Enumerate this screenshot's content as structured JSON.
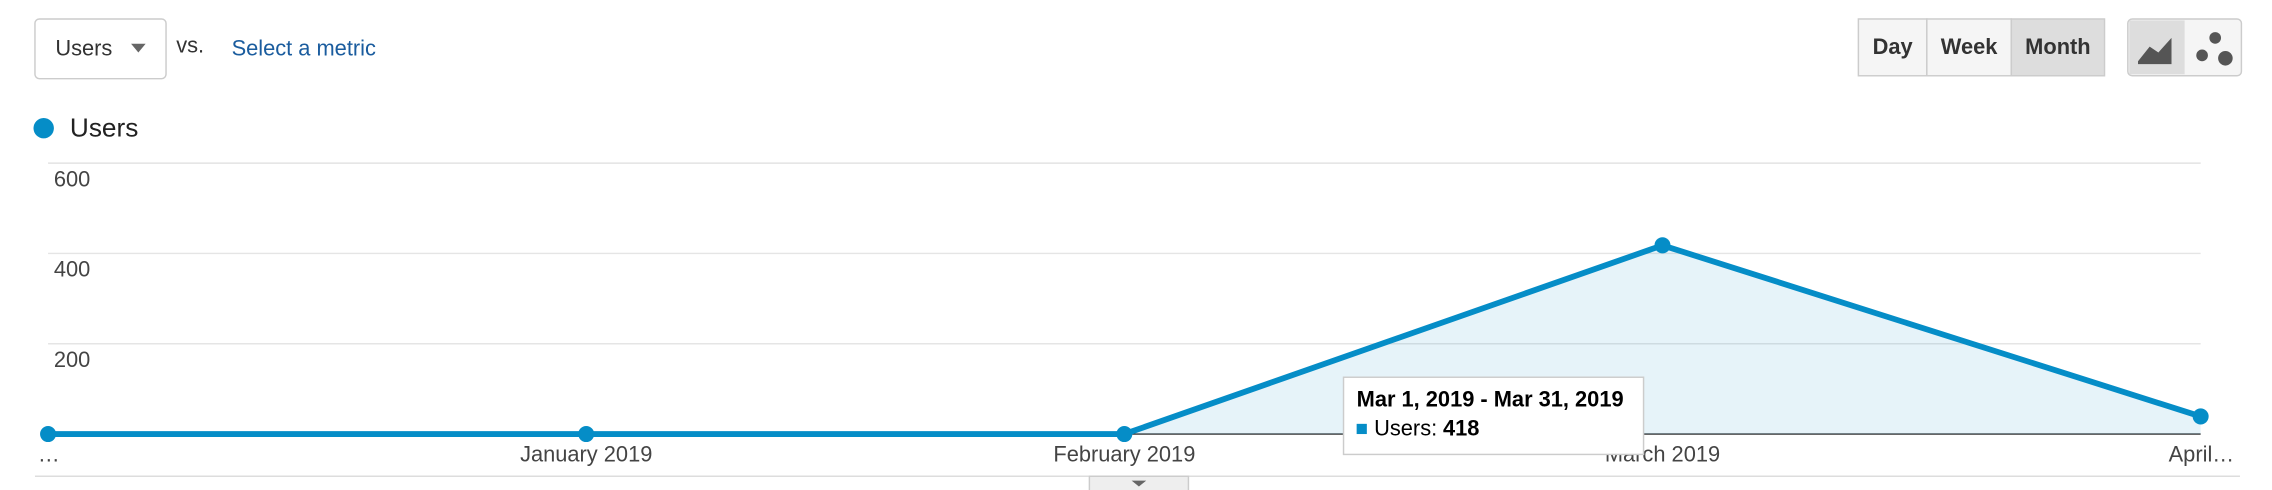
{
  "controls": {
    "metric": "Users",
    "vs": "vs.",
    "select_metric": "Select a metric",
    "periods": [
      "Day",
      "Week",
      "Month"
    ],
    "active_period": "Month"
  },
  "chart_data": {
    "type": "line",
    "categories": [
      "…",
      "January 2019",
      "February 2019",
      "March 2019",
      "April…"
    ],
    "series": [
      {
        "name": "Users",
        "color": "#058dc7",
        "values": [
          0,
          0,
          0,
          418,
          39
        ]
      }
    ],
    "ylim": [
      0,
      600
    ],
    "yticks": [
      200,
      400,
      600
    ],
    "grid": true,
    "area": true,
    "tooltip": {
      "title": "Mar 1, 2019 - Mar 31, 2019",
      "label": "Users:",
      "index": 3
    }
  }
}
